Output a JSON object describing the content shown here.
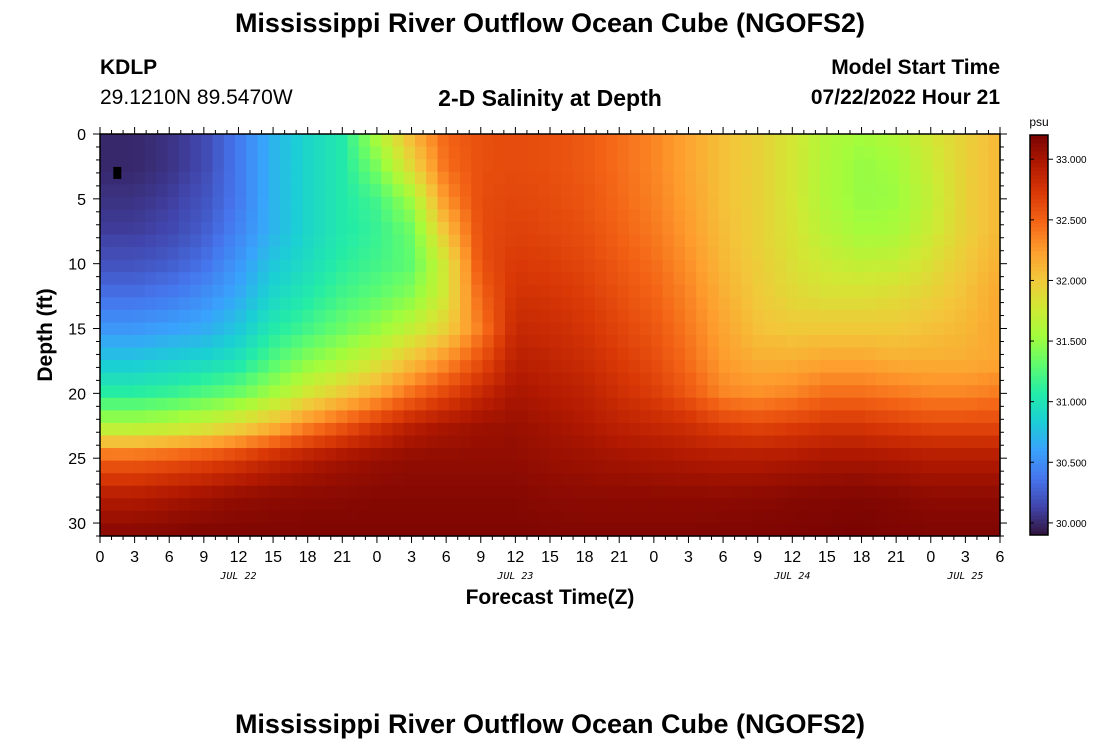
{
  "page": {
    "title": "Mississippi River Outflow Ocean Cube (NGOFS2)",
    "footer_title": "Mississippi River Outflow Ocean Cube (NGOFS2)"
  },
  "header": {
    "station_name": "KDLP",
    "station_coords": "29.1210N  89.5470W",
    "plot_title": "2-D Salinity at Depth",
    "model_start_label": "Model Start Time",
    "model_start_value": "07/22/2022 Hour 21"
  },
  "chart_data": {
    "type": "heatmap",
    "title": "2-D Salinity at Depth",
    "xlabel": "Forecast Time(Z)",
    "ylabel": "Depth (ft)",
    "x_ticks": [
      "0",
      "3",
      "6",
      "9",
      "12",
      "15",
      "18",
      "21",
      "0",
      "3",
      "6",
      "9",
      "12",
      "15",
      "18",
      "21",
      "0",
      "3",
      "6",
      "9",
      "12",
      "15",
      "18",
      "21",
      "0",
      "3",
      "6"
    ],
    "x_tick_hours": [
      0,
      3,
      6,
      9,
      12,
      15,
      18,
      21,
      24,
      27,
      30,
      33,
      36,
      39,
      42,
      45,
      48,
      51,
      54,
      57,
      60,
      63,
      66,
      69,
      72,
      75,
      78
    ],
    "date_labels": [
      {
        "label": "JUL 22",
        "hour": 12
      },
      {
        "label": "JUL 23",
        "hour": 36
      },
      {
        "label": "JUL 24",
        "hour": 60
      },
      {
        "label": "JUL 25",
        "hour": 75
      }
    ],
    "xlim_hours": [
      0,
      78
    ],
    "y_ticks": [
      0,
      5,
      10,
      15,
      20,
      25,
      30
    ],
    "ylim": [
      0,
      31
    ],
    "colorbar": {
      "unit": "psu",
      "min": 29.9,
      "max": 33.2,
      "tick_values": [
        30.0,
        30.5,
        31.0,
        31.5,
        32.0,
        32.5,
        33.0
      ],
      "tick_labels": [
        "30.000",
        "30.500",
        "31.000",
        "31.500",
        "32.000",
        "32.500",
        "33.000"
      ],
      "colors": [
        "#30123b",
        "#4145ab",
        "#4675ed",
        "#39a2fc",
        "#1bcfd4",
        "#24eca6",
        "#61fc6c",
        "#a4fc3b",
        "#d1e834",
        "#f3c63a",
        "#fe9b2d",
        "#f36315",
        "#d93806",
        "#b11901",
        "#7a0402"
      ]
    },
    "series": [
      {
        "values": [
          [
            30.0,
            30.0,
            30.05,
            30.15,
            30.4,
            30.7,
            30.9,
            31.05,
            31.6,
            32.1,
            32.5,
            32.6,
            32.62,
            32.6,
            32.55,
            32.45,
            32.35,
            32.2,
            32.05,
            31.95,
            31.8,
            31.62,
            31.55,
            31.62,
            31.8,
            31.95,
            32.1
          ],
          [
            30.0,
            30.0,
            30.05,
            30.15,
            30.4,
            30.7,
            30.9,
            31.05,
            31.4,
            31.9,
            32.45,
            32.6,
            32.62,
            32.6,
            32.55,
            32.45,
            32.35,
            32.2,
            32.05,
            31.95,
            31.8,
            31.6,
            31.5,
            31.55,
            31.75,
            31.95,
            32.1
          ],
          [
            30.05,
            30.05,
            30.1,
            30.2,
            30.4,
            30.7,
            30.9,
            31.05,
            31.2,
            31.55,
            32.3,
            32.62,
            32.65,
            32.62,
            32.57,
            32.47,
            32.37,
            32.22,
            32.05,
            31.95,
            31.8,
            31.6,
            31.5,
            31.52,
            31.7,
            31.95,
            32.1
          ],
          [
            30.1,
            30.1,
            30.15,
            30.25,
            30.45,
            30.7,
            30.9,
            31.05,
            31.15,
            31.35,
            32.05,
            32.62,
            32.68,
            32.65,
            32.6,
            32.5,
            32.4,
            32.25,
            32.07,
            31.95,
            31.82,
            31.65,
            31.55,
            31.58,
            31.75,
            31.95,
            32.1
          ],
          [
            30.2,
            30.2,
            30.25,
            30.35,
            30.55,
            30.8,
            30.95,
            31.1,
            31.2,
            31.3,
            31.8,
            32.6,
            32.72,
            32.7,
            32.65,
            32.55,
            32.45,
            32.3,
            32.1,
            31.97,
            31.85,
            31.75,
            31.7,
            31.72,
            31.85,
            32.0,
            32.15
          ],
          [
            30.35,
            30.35,
            30.4,
            30.5,
            30.65,
            30.9,
            31.05,
            31.2,
            31.3,
            31.45,
            31.8,
            32.5,
            32.78,
            32.76,
            32.7,
            32.6,
            32.5,
            32.35,
            32.15,
            32.0,
            31.9,
            31.85,
            31.85,
            31.88,
            31.95,
            32.05,
            32.2
          ],
          [
            30.55,
            30.55,
            30.6,
            30.65,
            30.8,
            31.05,
            31.2,
            31.35,
            31.5,
            31.7,
            31.95,
            32.4,
            32.85,
            32.82,
            32.76,
            32.66,
            32.56,
            32.4,
            32.2,
            32.05,
            32.0,
            32.0,
            32.0,
            32.0,
            32.05,
            32.1,
            32.2
          ],
          [
            30.8,
            30.8,
            30.85,
            30.9,
            31.0,
            31.25,
            31.45,
            31.6,
            31.8,
            32.05,
            32.3,
            32.6,
            32.92,
            32.88,
            32.82,
            32.72,
            32.62,
            32.45,
            32.25,
            32.15,
            32.15,
            32.2,
            32.2,
            32.15,
            32.15,
            32.15,
            32.2
          ],
          [
            31.1,
            31.1,
            31.15,
            31.25,
            31.35,
            31.55,
            31.8,
            32.0,
            32.2,
            32.45,
            32.65,
            32.85,
            33.0,
            32.95,
            32.9,
            32.8,
            32.7,
            32.55,
            32.35,
            32.3,
            32.35,
            32.45,
            32.45,
            32.4,
            32.35,
            32.35,
            32.4
          ],
          [
            31.6,
            31.6,
            31.65,
            31.75,
            31.9,
            32.1,
            32.35,
            32.55,
            32.75,
            32.92,
            33.0,
            33.05,
            33.07,
            33.02,
            32.97,
            32.9,
            32.85,
            32.8,
            32.7,
            32.65,
            32.7,
            32.75,
            32.75,
            32.7,
            32.65,
            32.65,
            32.65
          ],
          [
            32.5,
            32.5,
            32.55,
            32.62,
            32.72,
            32.85,
            32.95,
            33.02,
            33.07,
            33.1,
            33.1,
            33.1,
            33.1,
            33.07,
            33.05,
            33.02,
            33.0,
            32.97,
            32.95,
            32.95,
            32.97,
            33.0,
            33.0,
            32.98,
            32.95,
            32.95,
            32.95
          ],
          [
            32.95,
            32.95,
            33.0,
            33.05,
            33.1,
            33.12,
            33.13,
            33.14,
            33.15,
            33.15,
            33.15,
            33.15,
            33.15,
            33.13,
            33.12,
            33.12,
            33.12,
            33.12,
            33.12,
            33.13,
            33.15,
            33.16,
            33.17,
            33.15,
            33.12,
            33.12,
            33.12
          ],
          [
            33.15,
            33.15,
            33.17,
            33.18,
            33.18,
            33.18,
            33.18,
            33.18,
            33.18,
            33.18,
            33.18,
            33.18,
            33.18,
            33.17,
            33.17,
            33.17,
            33.17,
            33.17,
            33.18,
            33.18,
            33.19,
            33.2,
            33.2,
            33.19,
            33.18,
            33.18,
            33.18
          ]
        ]
      }
    ],
    "grid_depths": [
      0,
      2.5,
      5,
      7.5,
      10,
      12.5,
      15,
      17.5,
      20,
      22.5,
      25,
      28,
      31
    ],
    "marker": {
      "hour": 1.5,
      "depth": 3
    }
  }
}
